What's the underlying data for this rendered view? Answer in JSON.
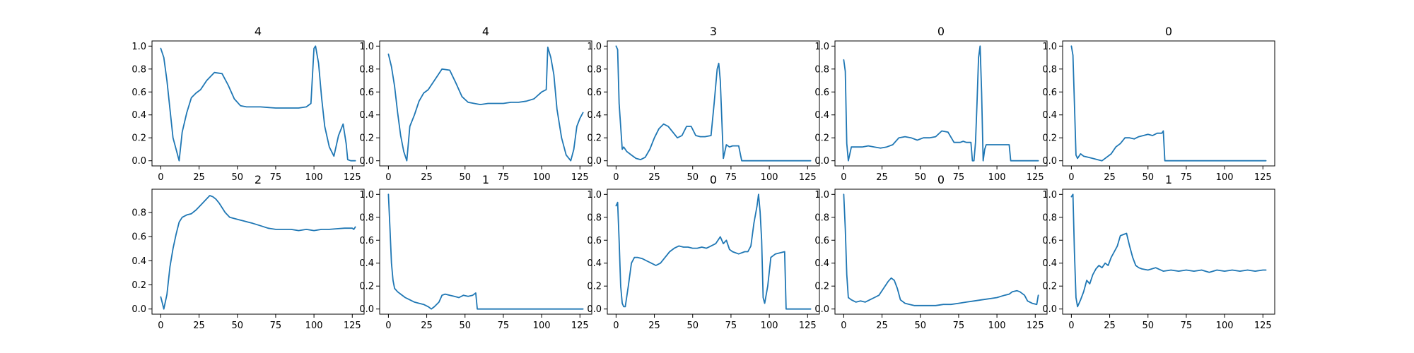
{
  "chart_data": [
    {
      "type": "line",
      "title": "4",
      "xlim": [
        0,
        127
      ],
      "ylim": [
        0,
        1
      ],
      "xticks": [
        0,
        25,
        50,
        75,
        100,
        125
      ],
      "yticks": [
        0.0,
        0.2,
        0.4,
        0.6,
        0.8,
        1.0
      ],
      "x": [
        0,
        2,
        4,
        6,
        8,
        10,
        12,
        14,
        17,
        20,
        23,
        26,
        30,
        35,
        40,
        44,
        48,
        52,
        56,
        60,
        65,
        70,
        75,
        80,
        85,
        90,
        95,
        98,
        100,
        101,
        103,
        105,
        107,
        110,
        113,
        116,
        119,
        121,
        122,
        124,
        125,
        127
      ],
      "y": [
        0.98,
        0.9,
        0.7,
        0.45,
        0.2,
        0.1,
        0.0,
        0.25,
        0.42,
        0.55,
        0.59,
        0.62,
        0.7,
        0.77,
        0.76,
        0.66,
        0.54,
        0.48,
        0.47,
        0.47,
        0.47,
        0.465,
        0.46,
        0.46,
        0.46,
        0.46,
        0.47,
        0.5,
        0.98,
        1.0,
        0.85,
        0.55,
        0.3,
        0.12,
        0.04,
        0.22,
        0.32,
        0.15,
        0.01,
        0.0,
        0.0,
        0.0
      ]
    },
    {
      "type": "line",
      "title": "4",
      "xlim": [
        0,
        127
      ],
      "ylim": [
        0,
        1
      ],
      "xticks": [
        0,
        25,
        50,
        75,
        100,
        125
      ],
      "yticks": [
        0.0,
        0.2,
        0.4,
        0.6,
        0.8,
        1.0
      ],
      "x": [
        0,
        2,
        4,
        6,
        8,
        10,
        12,
        14,
        17,
        20,
        23,
        26,
        30,
        35,
        40,
        44,
        48,
        52,
        56,
        60,
        65,
        70,
        75,
        80,
        85,
        90,
        95,
        100,
        103,
        104,
        106,
        108,
        110,
        113,
        116,
        119,
        121,
        123,
        125,
        127
      ],
      "y": [
        0.93,
        0.82,
        0.65,
        0.42,
        0.22,
        0.08,
        0.0,
        0.3,
        0.4,
        0.52,
        0.59,
        0.62,
        0.7,
        0.8,
        0.79,
        0.68,
        0.56,
        0.51,
        0.5,
        0.49,
        0.5,
        0.5,
        0.5,
        0.51,
        0.51,
        0.52,
        0.54,
        0.6,
        0.62,
        0.99,
        0.9,
        0.75,
        0.45,
        0.2,
        0.05,
        0.0,
        0.1,
        0.3,
        0.37,
        0.42
      ]
    },
    {
      "type": "line",
      "title": "3",
      "xlim": [
        0,
        127
      ],
      "ylim": [
        0,
        1
      ],
      "xticks": [
        0,
        25,
        50,
        75,
        100,
        125
      ],
      "yticks": [
        0.0,
        0.2,
        0.4,
        0.6,
        0.8,
        1.0
      ],
      "x": [
        0,
        1,
        2,
        4,
        5,
        7,
        10,
        13,
        16,
        19,
        22,
        25,
        28,
        31,
        34,
        37,
        40,
        43,
        46,
        49,
        52,
        55,
        58,
        62,
        64,
        66,
        67,
        68,
        70,
        72,
        74,
        76,
        80,
        82,
        85,
        90,
        100,
        110,
        120,
        127
      ],
      "y": [
        1.0,
        0.97,
        0.5,
        0.1,
        0.12,
        0.08,
        0.05,
        0.02,
        0.01,
        0.03,
        0.1,
        0.2,
        0.28,
        0.32,
        0.3,
        0.25,
        0.2,
        0.22,
        0.3,
        0.3,
        0.22,
        0.21,
        0.21,
        0.22,
        0.5,
        0.8,
        0.85,
        0.7,
        0.02,
        0.14,
        0.12,
        0.13,
        0.13,
        0.0,
        0.0,
        0.0,
        0.0,
        0.0,
        0.0,
        0.0
      ]
    },
    {
      "type": "line",
      "title": "0",
      "xlim": [
        0,
        127
      ],
      "ylim": [
        0,
        1
      ],
      "xticks": [
        0,
        25,
        50,
        75,
        100,
        125
      ],
      "yticks": [
        0.0,
        0.2,
        0.4,
        0.6,
        0.8,
        1.0
      ],
      "x": [
        0,
        1,
        2,
        3,
        5,
        8,
        12,
        16,
        20,
        24,
        28,
        32,
        36,
        40,
        44,
        48,
        52,
        56,
        60,
        64,
        68,
        72,
        74,
        76,
        78,
        80,
        83,
        84,
        85,
        86,
        87,
        88,
        89,
        90,
        91,
        92,
        93,
        96,
        100,
        104,
        108,
        109,
        112,
        116,
        120,
        127
      ],
      "y": [
        0.88,
        0.78,
        0.15,
        0.0,
        0.12,
        0.12,
        0.12,
        0.13,
        0.12,
        0.11,
        0.12,
        0.14,
        0.2,
        0.21,
        0.2,
        0.18,
        0.2,
        0.2,
        0.21,
        0.26,
        0.25,
        0.16,
        0.16,
        0.16,
        0.17,
        0.16,
        0.16,
        0.0,
        0.0,
        0.16,
        0.5,
        0.9,
        1.0,
        0.6,
        0.0,
        0.1,
        0.14,
        0.14,
        0.14,
        0.14,
        0.14,
        0.0,
        0.0,
        0.0,
        0.0,
        0.0
      ]
    },
    {
      "type": "line",
      "title": "0",
      "xlim": [
        0,
        127
      ],
      "ylim": [
        0,
        1
      ],
      "xticks": [
        0,
        25,
        50,
        75,
        100,
        125
      ],
      "yticks": [
        0.0,
        0.2,
        0.4,
        0.6,
        0.8,
        1.0
      ],
      "x": [
        0,
        1,
        2,
        3,
        4,
        6,
        8,
        11,
        14,
        17,
        20,
        23,
        26,
        29,
        32,
        35,
        38,
        41,
        44,
        47,
        50,
        53,
        56,
        59,
        60,
        61,
        62,
        65,
        70,
        80,
        90,
        100,
        110,
        120,
        127
      ],
      "y": [
        1.0,
        0.92,
        0.5,
        0.05,
        0.02,
        0.06,
        0.04,
        0.03,
        0.02,
        0.01,
        0.0,
        0.03,
        0.06,
        0.12,
        0.15,
        0.2,
        0.2,
        0.19,
        0.21,
        0.22,
        0.23,
        0.22,
        0.24,
        0.24,
        0.26,
        0.0,
        0.0,
        0.0,
        0.0,
        0.0,
        0.0,
        0.0,
        0.0,
        0.0,
        0.0
      ]
    },
    {
      "type": "line",
      "title": "2",
      "xlim": [
        0,
        127
      ],
      "ylim": [
        0,
        0.95
      ],
      "xticks": [
        0,
        25,
        50,
        75,
        100,
        125
      ],
      "yticks": [
        0.0,
        0.2,
        0.4,
        0.6,
        0.8
      ],
      "x": [
        0,
        1,
        2,
        4,
        6,
        8,
        10,
        12,
        14,
        17,
        20,
        23,
        26,
        29,
        32,
        34,
        36,
        38,
        40,
        42,
        45,
        48,
        51,
        54,
        57,
        60,
        65,
        70,
        75,
        80,
        85,
        90,
        95,
        100,
        105,
        110,
        115,
        120,
        125,
        126,
        127
      ],
      "y": [
        0.1,
        0.05,
        0.0,
        0.12,
        0.35,
        0.5,
        0.62,
        0.72,
        0.76,
        0.78,
        0.79,
        0.82,
        0.86,
        0.9,
        0.94,
        0.93,
        0.91,
        0.88,
        0.84,
        0.8,
        0.76,
        0.75,
        0.74,
        0.73,
        0.72,
        0.71,
        0.69,
        0.67,
        0.66,
        0.66,
        0.66,
        0.65,
        0.66,
        0.65,
        0.66,
        0.66,
        0.665,
        0.67,
        0.67,
        0.66,
        0.68
      ]
    },
    {
      "type": "line",
      "title": "1",
      "xlim": [
        0,
        127
      ],
      "ylim": [
        0,
        1
      ],
      "xticks": [
        0,
        25,
        50,
        75,
        100,
        125
      ],
      "yticks": [
        0.0,
        0.2,
        0.4,
        0.6,
        0.8,
        1.0
      ],
      "x": [
        0,
        1,
        2,
        3,
        4,
        6,
        8,
        11,
        14,
        17,
        20,
        23,
        26,
        28,
        30,
        33,
        35,
        37,
        40,
        43,
        46,
        49,
        52,
        55,
        57,
        58,
        60,
        70,
        80,
        90,
        100,
        110,
        120,
        127
      ],
      "y": [
        1.0,
        0.7,
        0.4,
        0.25,
        0.18,
        0.15,
        0.13,
        0.1,
        0.08,
        0.06,
        0.05,
        0.04,
        0.02,
        0.0,
        0.02,
        0.06,
        0.12,
        0.13,
        0.12,
        0.11,
        0.1,
        0.12,
        0.11,
        0.12,
        0.14,
        0.0,
        0.0,
        0.0,
        0.0,
        0.0,
        0.0,
        0.0,
        0.0,
        0.0
      ]
    },
    {
      "type": "line",
      "title": "0",
      "xlim": [
        0,
        127
      ],
      "ylim": [
        0,
        1
      ],
      "xticks": [
        0,
        25,
        50,
        75,
        100,
        125
      ],
      "yticks": [
        0.0,
        0.2,
        0.4,
        0.6,
        0.8,
        1.0
      ],
      "x": [
        0,
        1,
        2,
        3,
        4,
        5,
        6,
        8,
        10,
        12,
        14,
        17,
        20,
        23,
        26,
        29,
        32,
        35,
        38,
        41,
        44,
        47,
        50,
        53,
        56,
        59,
        62,
        65,
        68,
        70,
        72,
        74,
        76,
        80,
        84,
        86,
        88,
        90,
        92,
        93,
        94,
        95,
        96,
        97,
        99,
        101,
        104,
        107,
        110,
        111,
        115,
        120,
        127
      ],
      "y": [
        0.9,
        0.93,
        0.6,
        0.2,
        0.05,
        0.02,
        0.02,
        0.2,
        0.4,
        0.45,
        0.45,
        0.44,
        0.42,
        0.4,
        0.38,
        0.4,
        0.45,
        0.5,
        0.53,
        0.55,
        0.54,
        0.54,
        0.53,
        0.53,
        0.54,
        0.53,
        0.55,
        0.57,
        0.63,
        0.57,
        0.6,
        0.52,
        0.5,
        0.48,
        0.5,
        0.5,
        0.55,
        0.75,
        0.9,
        1.0,
        0.85,
        0.6,
        0.1,
        0.05,
        0.2,
        0.45,
        0.48,
        0.49,
        0.5,
        0.0,
        0.0,
        0.0,
        0.0
      ]
    },
    {
      "type": "line",
      "title": "0",
      "xlim": [
        0,
        127
      ],
      "ylim": [
        0,
        1
      ],
      "xticks": [
        0,
        25,
        50,
        75,
        100,
        125
      ],
      "yticks": [
        0.0,
        0.2,
        0.4,
        0.6,
        0.8,
        1.0
      ],
      "x": [
        0,
        1,
        2,
        3,
        5,
        8,
        11,
        14,
        17,
        20,
        23,
        26,
        29,
        31,
        33,
        35,
        37,
        40,
        43,
        46,
        50,
        55,
        60,
        65,
        70,
        75,
        80,
        85,
        90,
        95,
        100,
        105,
        108,
        110,
        113,
        115,
        118,
        120,
        123,
        126,
        127
      ],
      "y": [
        1.0,
        0.7,
        0.3,
        0.1,
        0.08,
        0.06,
        0.07,
        0.06,
        0.08,
        0.1,
        0.12,
        0.18,
        0.24,
        0.27,
        0.25,
        0.18,
        0.08,
        0.05,
        0.04,
        0.03,
        0.03,
        0.03,
        0.03,
        0.04,
        0.04,
        0.05,
        0.06,
        0.07,
        0.08,
        0.09,
        0.1,
        0.12,
        0.13,
        0.15,
        0.16,
        0.15,
        0.12,
        0.07,
        0.05,
        0.04,
        0.12
      ]
    },
    {
      "type": "line",
      "title": "1",
      "xlim": [
        0,
        127
      ],
      "ylim": [
        0,
        1
      ],
      "xticks": [
        0,
        25,
        50,
        75,
        100,
        125
      ],
      "yticks": [
        0.0,
        0.2,
        0.4,
        0.6,
        0.8,
        1.0
      ],
      "x": [
        0,
        1,
        2,
        3,
        4,
        6,
        8,
        10,
        12,
        14,
        16,
        18,
        20,
        22,
        24,
        26,
        28,
        30,
        32,
        34,
        36,
        38,
        40,
        42,
        44,
        46,
        50,
        55,
        60,
        65,
        70,
        75,
        80,
        85,
        90,
        95,
        100,
        105,
        110,
        115,
        120,
        125,
        127
      ],
      "y": [
        0.98,
        1.0,
        0.5,
        0.1,
        0.02,
        0.08,
        0.15,
        0.25,
        0.22,
        0.3,
        0.35,
        0.38,
        0.36,
        0.4,
        0.38,
        0.45,
        0.5,
        0.55,
        0.64,
        0.65,
        0.66,
        0.55,
        0.45,
        0.38,
        0.36,
        0.35,
        0.34,
        0.36,
        0.33,
        0.34,
        0.33,
        0.34,
        0.33,
        0.34,
        0.32,
        0.34,
        0.33,
        0.34,
        0.33,
        0.34,
        0.33,
        0.34,
        0.34
      ]
    }
  ],
  "colors": {
    "series": "#1f77b4",
    "axis": "#000000"
  }
}
